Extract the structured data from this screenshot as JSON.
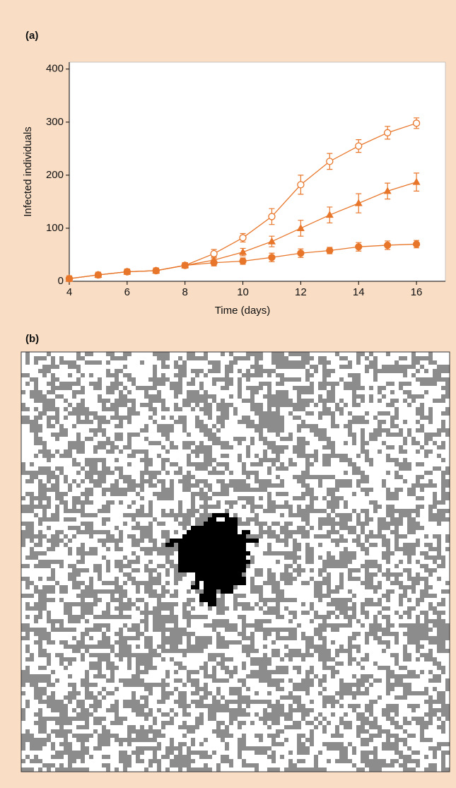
{
  "chart_data": {
    "type": "line",
    "panel_label": "(a)",
    "x_label": "Time (days)",
    "y_label": "Infected individuals",
    "x": [
      4,
      5,
      6,
      7,
      8,
      9,
      10,
      11,
      12,
      13,
      14,
      15,
      16
    ],
    "xlim": [
      4,
      17
    ],
    "xticks": [
      4,
      6,
      8,
      10,
      12,
      14,
      16
    ],
    "ylim": [
      0,
      413
    ],
    "yticks": [
      0,
      100,
      200,
      300,
      400
    ],
    "series": [
      {
        "color": "#e8762a",
        "marker": "open-circle",
        "values": [
          5,
          12,
          18,
          20,
          30,
          52,
          82,
          122,
          182,
          226,
          255,
          280,
          298
        ],
        "errors": [
          5,
          5,
          5,
          5,
          5,
          8,
          8,
          15,
          18,
          15,
          12,
          12,
          10
        ]
      },
      {
        "color": "#e8762a",
        "marker": "triangle",
        "values": [
          5,
          12,
          18,
          20,
          30,
          40,
          55,
          75,
          100,
          125,
          147,
          170,
          187
        ],
        "errors": [
          5,
          5,
          5,
          5,
          5,
          6,
          7,
          10,
          15,
          15,
          18,
          15,
          17
        ]
      },
      {
        "color": "#e8762a",
        "marker": "circle",
        "values": [
          5,
          12,
          18,
          20,
          30,
          35,
          38,
          45,
          53,
          58,
          65,
          68,
          70
        ],
        "errors": [
          5,
          5,
          5,
          5,
          5,
          6,
          6,
          8,
          8,
          6,
          8,
          8,
          7
        ]
      }
    ]
  },
  "panel_b": {
    "label": "(b)"
  }
}
